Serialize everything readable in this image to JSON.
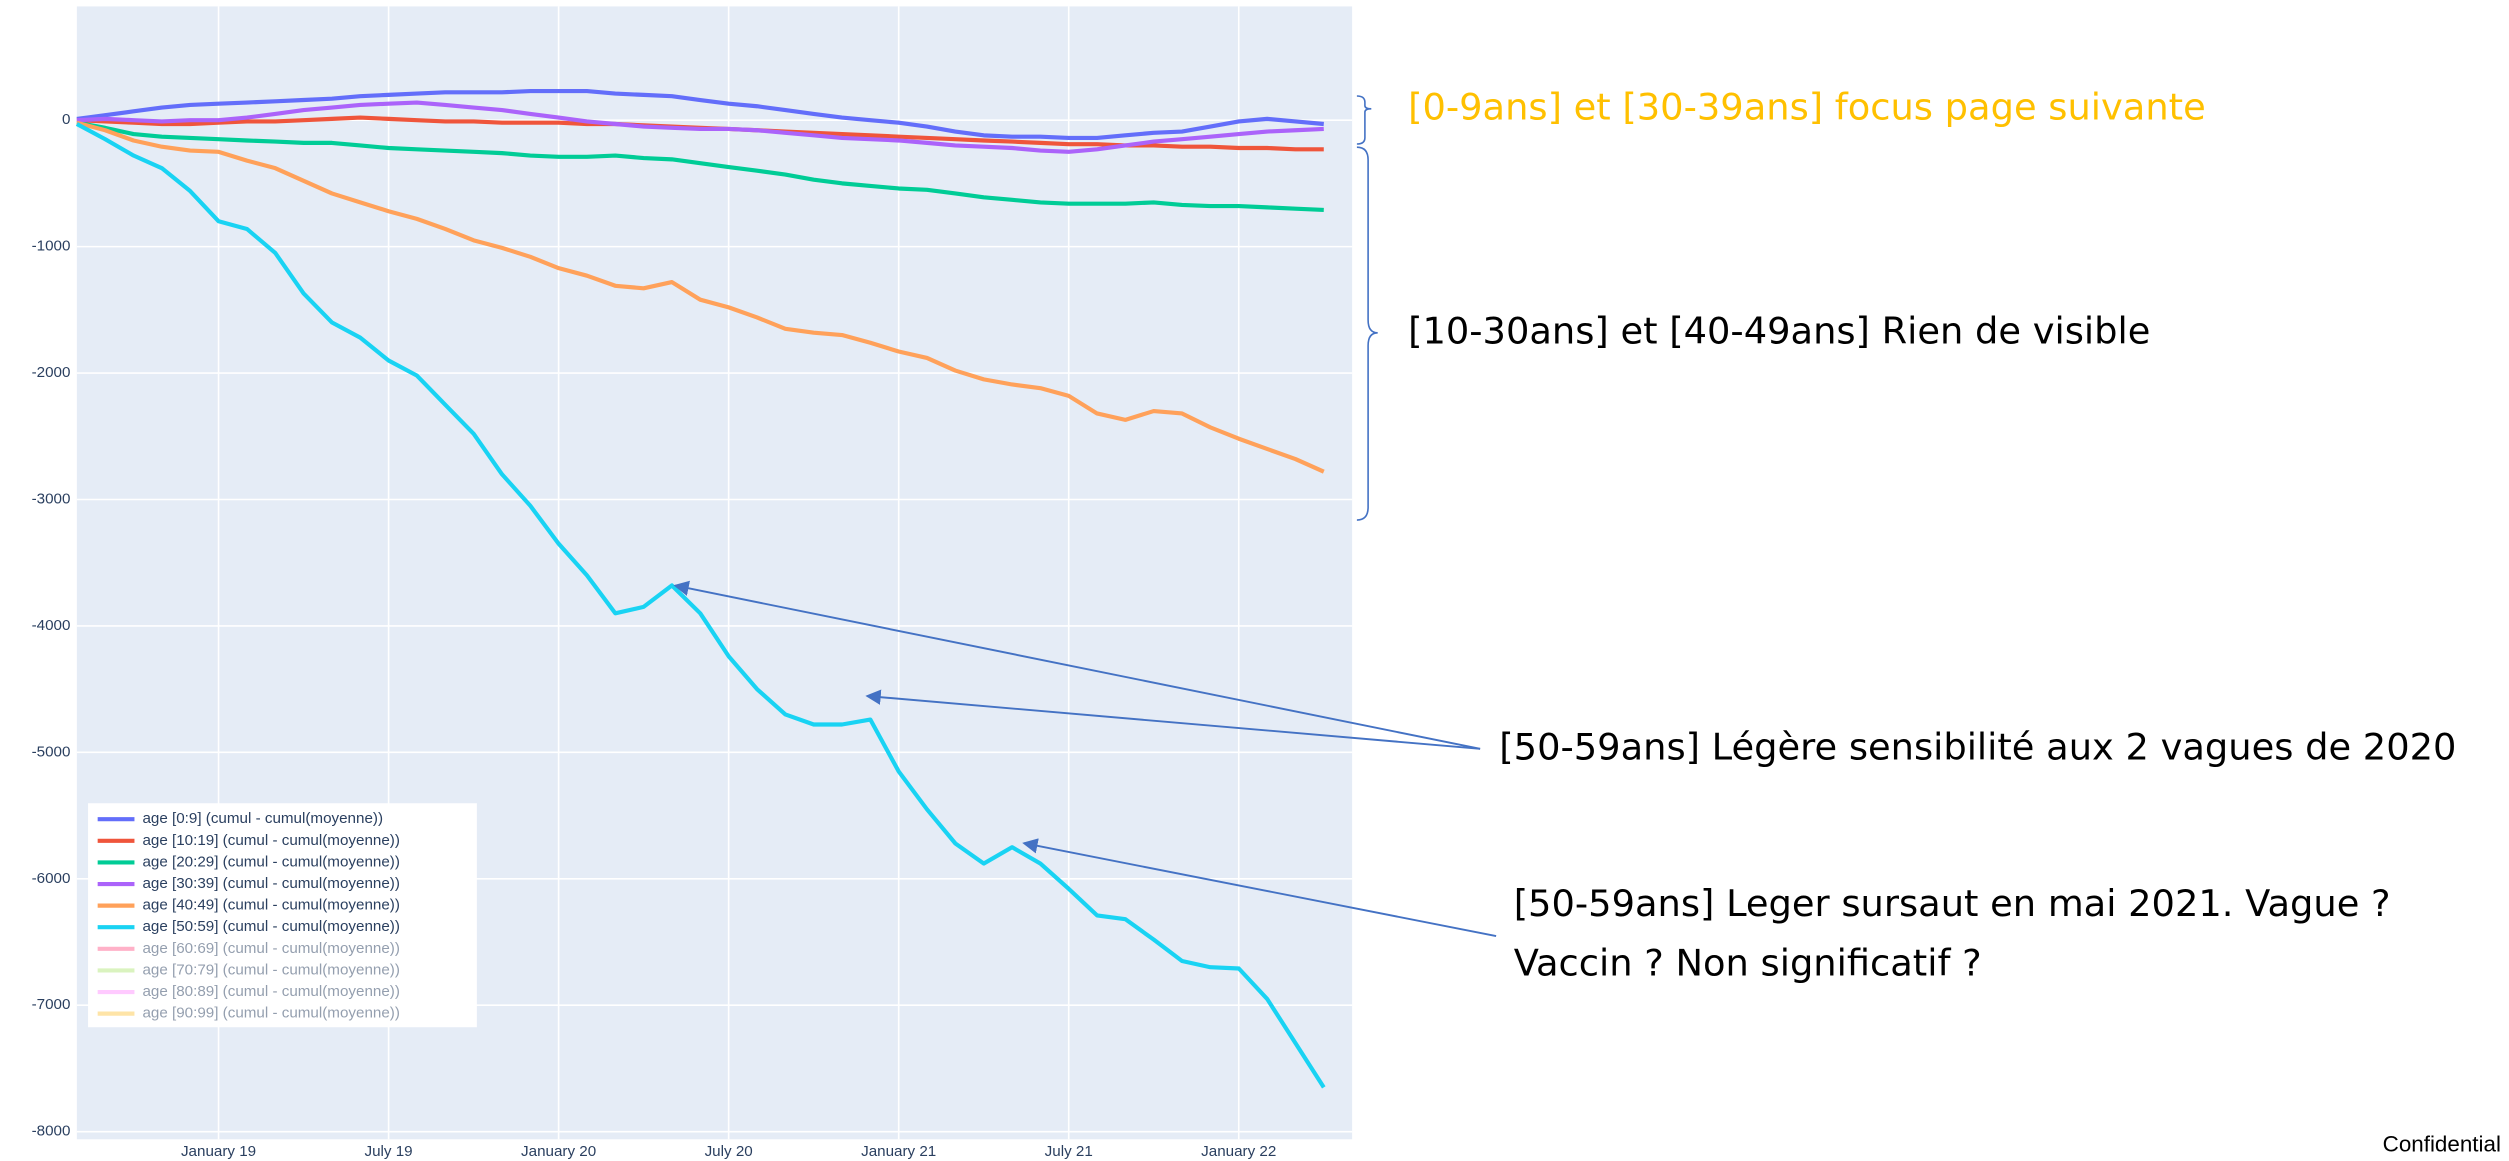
{
  "chart_data": {
    "type": "line",
    "x": [
      "2018-08",
      "2018-09",
      "2018-10",
      "2018-11",
      "2018-12",
      "2019-01",
      "2019-02",
      "2019-03",
      "2019-04",
      "2019-05",
      "2019-06",
      "2019-07",
      "2019-08",
      "2019-09",
      "2019-10",
      "2019-11",
      "2019-12",
      "2020-01",
      "2020-02",
      "2020-03",
      "2020-04",
      "2020-05",
      "2020-06",
      "2020-07",
      "2020-08",
      "2020-09",
      "2020-10",
      "2020-11",
      "2020-12",
      "2021-01",
      "2021-02",
      "2021-03",
      "2021-04",
      "2021-05",
      "2021-06",
      "2021-07",
      "2021-08",
      "2021-09",
      "2021-10",
      "2021-11",
      "2021-12",
      "2022-01",
      "2022-02",
      "2022-03",
      "2022-04"
    ],
    "xlim": [
      "2018-08",
      "2022-05"
    ],
    "xticks": [
      {
        "value": "2019-01",
        "label": "January 19"
      },
      {
        "value": "2019-07",
        "label": "July 19"
      },
      {
        "value": "2020-01",
        "label": "January 20"
      },
      {
        "value": "2020-07",
        "label": "July 20"
      },
      {
        "value": "2021-01",
        "label": "January 21"
      },
      {
        "value": "2021-07",
        "label": "July 21"
      },
      {
        "value": "2022-01",
        "label": "January 22"
      }
    ],
    "ylim": [
      -8060,
      900
    ],
    "yticks": [
      -8000,
      -7000,
      -6000,
      -5000,
      -4000,
      -3000,
      -2000,
      -1000,
      0
    ],
    "grid": true,
    "legend": "bottom-left",
    "series": [
      {
        "name": "age [0:9] (cumul - cumul(moyenne))",
        "color": "#636efa",
        "values": [
          10,
          40,
          70,
          100,
          120,
          130,
          140,
          150,
          160,
          170,
          190,
          200,
          210,
          220,
          220,
          220,
          230,
          230,
          230,
          210,
          200,
          190,
          160,
          130,
          110,
          80,
          50,
          20,
          0,
          -20,
          -50,
          -90,
          -120,
          -130,
          -130,
          -140,
          -140,
          -120,
          -100,
          -90,
          -50,
          -10,
          10,
          -10,
          -30
        ]
      },
      {
        "name": "age [10:19] (cumul - cumul(moyenne))",
        "color": "#ef553b",
        "values": [
          0,
          -10,
          -20,
          -30,
          -30,
          -20,
          -10,
          -10,
          0,
          10,
          20,
          10,
          0,
          -10,
          -10,
          -20,
          -20,
          -20,
          -30,
          -30,
          -40,
          -50,
          -60,
          -70,
          -80,
          -90,
          -100,
          -110,
          -120,
          -130,
          -140,
          -150,
          -160,
          -170,
          -180,
          -190,
          -190,
          -200,
          -200,
          -210,
          -210,
          -220,
          -220,
          -230,
          -230
        ]
      },
      {
        "name": "age [20:29] (cumul - cumul(moyenne))",
        "color": "#00cc96",
        "values": [
          -20,
          -60,
          -110,
          -130,
          -140,
          -150,
          -160,
          -170,
          -180,
          -180,
          -200,
          -220,
          -230,
          -240,
          -250,
          -260,
          -280,
          -290,
          -290,
          -280,
          -300,
          -310,
          -340,
          -370,
          -400,
          -430,
          -470,
          -500,
          -520,
          -540,
          -550,
          -580,
          -610,
          -630,
          -650,
          -660,
          -660,
          -660,
          -650,
          -670,
          -680,
          -680,
          -690,
          -700,
          -710
        ]
      },
      {
        "name": "age [30:39] (cumul - cumul(moyenne))",
        "color": "#ab63fa",
        "values": [
          0,
          10,
          0,
          -10,
          0,
          0,
          20,
          50,
          80,
          100,
          120,
          130,
          140,
          120,
          100,
          80,
          50,
          20,
          -10,
          -30,
          -50,
          -60,
          -70,
          -70,
          -80,
          -100,
          -120,
          -140,
          -150,
          -160,
          -180,
          -200,
          -210,
          -220,
          -240,
          -250,
          -230,
          -200,
          -170,
          -150,
          -130,
          -110,
          -90,
          -80,
          -70
        ]
      },
      {
        "name": "age [40:49] (cumul - cumul(moyenne))",
        "color": "#ffa15a",
        "values": [
          -20,
          -80,
          -160,
          -210,
          -240,
          -250,
          -320,
          -380,
          -480,
          -580,
          -650,
          -720,
          -780,
          -860,
          -950,
          -1010,
          -1080,
          -1170,
          -1230,
          -1310,
          -1330,
          -1280,
          -1420,
          -1480,
          -1560,
          -1650,
          -1680,
          -1700,
          -1760,
          -1830,
          -1880,
          -1980,
          -2050,
          -2090,
          -2120,
          -2180,
          -2320,
          -2370,
          -2300,
          -2320,
          -2430,
          -2520,
          -2600,
          -2680,
          -2780
        ]
      },
      {
        "name": "age [50:59] (cumul - cumul(moyenne))",
        "color": "#19d3f3",
        "values": [
          -30,
          -150,
          -280,
          -380,
          -560,
          -800,
          -860,
          -1050,
          -1370,
          -1600,
          -1720,
          -1900,
          -2020,
          -2250,
          -2480,
          -2800,
          -3050,
          -3350,
          -3600,
          -3900,
          -3850,
          -3680,
          -3900,
          -4240,
          -4500,
          -4700,
          -4780,
          -4780,
          -4740,
          -5150,
          -5450,
          -5720,
          -5880,
          -5750,
          -5880,
          -6080,
          -6290,
          -6320,
          -6480,
          -6650,
          -6700,
          -6710,
          -6950,
          -7300,
          -7650
        ]
      },
      {
        "name": "age [60:69] (cumul - cumul(moyenne))",
        "color": "#ff6692",
        "visible": "legendonly"
      },
      {
        "name": "age [70:79] (cumul - cumul(moyenne))",
        "color": "#b6e880",
        "visible": "legendonly"
      },
      {
        "name": "age [80:89] (cumul - cumul(moyenne))",
        "color": "#ff97ff",
        "visible": "legendonly"
      },
      {
        "name": "age [90:99] (cumul - cumul(moyenne))",
        "color": "#fecb52",
        "visible": "legendonly"
      }
    ],
    "annotations": [
      {
        "text": "[0-9ans] et [30-39ans] focus page suivante",
        "color": "#ffc000"
      },
      {
        "text": "[10-30ans] et [40-49ans] Rien de visible",
        "color": "#000000"
      },
      {
        "text": "[50-59ans] Légère sensibilité aux 2 vagues de 2020",
        "color": "#000000"
      },
      {
        "text": "[50-59ans] Leger sursaut en mai 2021. Vague ?",
        "color": "#000000"
      },
      {
        "text": "Vaccin ? Non significatif ?",
        "color": "#000000"
      }
    ],
    "footer": "Confidential"
  }
}
